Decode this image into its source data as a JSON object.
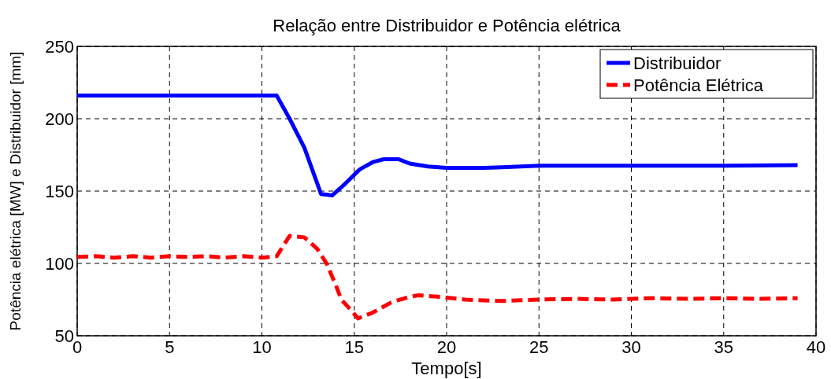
{
  "chart_data": {
    "type": "line",
    "title": "Relação entre Distribuidor e Potência elétrica",
    "xlabel": "Tempo[s]",
    "ylabel": "Potência elétrica [MW] e Distribuidor [mm]",
    "xlim": [
      0,
      40
    ],
    "ylim": [
      50,
      250
    ],
    "xticks": [
      0,
      5,
      10,
      15,
      20,
      25,
      30,
      35,
      40
    ],
    "yticks": [
      50,
      100,
      150,
      200,
      250
    ],
    "grid": true,
    "legend": "top right",
    "series": [
      {
        "name": "Distribuidor",
        "color": "#0000ff",
        "line_style": "solid",
        "x": [
          0,
          5,
          10,
          10.8,
          11.5,
          12.3,
          13.2,
          13.8,
          14.5,
          15.3,
          16,
          16.6,
          17.4,
          18,
          19,
          20,
          22,
          23,
          25,
          30,
          35,
          39
        ],
        "values": [
          216,
          216,
          216,
          216,
          200,
          180,
          148,
          147,
          155,
          165,
          170,
          172,
          172,
          169,
          167,
          166,
          166,
          166.5,
          167.5,
          167.5,
          167.5,
          168
        ]
      },
      {
        "name": "Potência Elétrica",
        "color": "#ff0000",
        "line_style": "dashed",
        "x": [
          0,
          1,
          2,
          3,
          4,
          5,
          6,
          7,
          8,
          9,
          10,
          10.8,
          11.5,
          12.3,
          13,
          13.5,
          14,
          14.3,
          14.8,
          15.2,
          16,
          17,
          18,
          18.5,
          19.5,
          21,
          23,
          25,
          27,
          29,
          31,
          33,
          35,
          37,
          39
        ],
        "values": [
          104.5,
          105,
          104,
          105,
          104,
          105,
          104.5,
          105,
          104,
          105,
          104,
          105,
          119,
          118,
          110,
          100,
          85,
          75,
          68,
          62,
          66,
          73,
          77,
          78,
          77,
          75,
          74,
          75,
          75.5,
          75,
          76,
          75.5,
          76,
          75.5,
          76
        ]
      }
    ]
  }
}
